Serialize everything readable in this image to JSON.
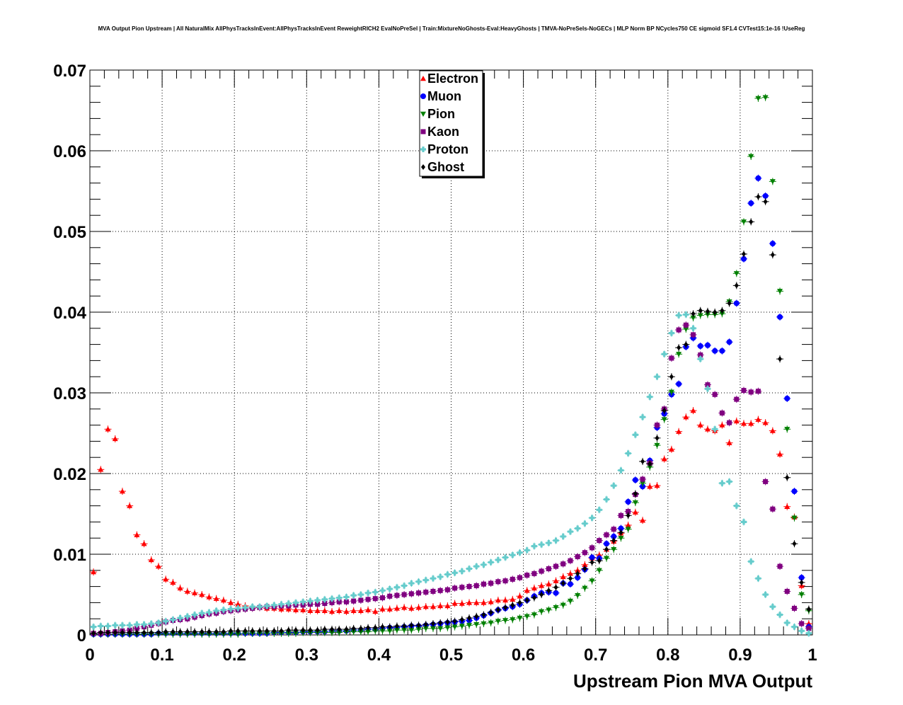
{
  "chart_data": {
    "type": "scatter",
    "title": "MVA Output Pion Upstream | All NaturalMix AllPhysTracksInEvent:AllPhysTracksInEvent ReweightRICH2 EvalNoPreSel | Train:MixtureNoGhosts-Eval:HeavyGhosts | TMVA-NoPreSels-NoGECs | MLP Norm BP NCycles750 CE sigmoid SF1.4 CVTest15:1e-16 !UseReg",
    "xlabel": "Upstream Pion MVA Output",
    "ylabel": "",
    "xlim": [
      0,
      1
    ],
    "ylim": [
      0,
      0.07
    ],
    "x_ticks": [
      "0",
      "0.1",
      "0.2",
      "0.3",
      "0.4",
      "0.5",
      "0.6",
      "0.7",
      "0.8",
      "0.9",
      "1"
    ],
    "y_ticks": [
      "0",
      "0.01",
      "0.02",
      "0.03",
      "0.04",
      "0.05",
      "0.06",
      "0.07"
    ],
    "grid": true,
    "legend_position": "top-center",
    "x": [
      0.005,
      0.015,
      0.025,
      0.035,
      0.045,
      0.055,
      0.065,
      0.075,
      0.085,
      0.095,
      0.105,
      0.115,
      0.125,
      0.135,
      0.145,
      0.155,
      0.165,
      0.175,
      0.185,
      0.195,
      0.205,
      0.215,
      0.225,
      0.235,
      0.245,
      0.255,
      0.265,
      0.275,
      0.285,
      0.295,
      0.305,
      0.315,
      0.325,
      0.335,
      0.345,
      0.355,
      0.365,
      0.375,
      0.385,
      0.395,
      0.405,
      0.415,
      0.425,
      0.435,
      0.445,
      0.455,
      0.465,
      0.475,
      0.485,
      0.495,
      0.505,
      0.515,
      0.525,
      0.535,
      0.545,
      0.555,
      0.565,
      0.575,
      0.585,
      0.595,
      0.605,
      0.615,
      0.625,
      0.635,
      0.645,
      0.655,
      0.665,
      0.675,
      0.685,
      0.695,
      0.705,
      0.715,
      0.725,
      0.735,
      0.745,
      0.755,
      0.765,
      0.775,
      0.785,
      0.795,
      0.805,
      0.815,
      0.825,
      0.835,
      0.845,
      0.855,
      0.865,
      0.875,
      0.885,
      0.895,
      0.905,
      0.915,
      0.925,
      0.935,
      0.945,
      0.955,
      0.965,
      0.975,
      0.985,
      0.995
    ],
    "series": [
      {
        "name": "Electron",
        "color": "#ff0000",
        "marker": "triangle-up",
        "values": [
          0.0078,
          0.0205,
          0.0255,
          0.0243,
          0.0178,
          0.016,
          0.0124,
          0.0113,
          0.0093,
          0.0085,
          0.0069,
          0.0065,
          0.0058,
          0.0054,
          0.0052,
          0.005,
          0.0047,
          0.0045,
          0.0043,
          0.004,
          0.0038,
          0.0036,
          0.0034,
          0.0034,
          0.0033,
          0.0033,
          0.0032,
          0.0032,
          0.0031,
          0.0031,
          0.003,
          0.003,
          0.003,
          0.0029,
          0.003,
          0.0029,
          0.003,
          0.003,
          0.0031,
          0.0029,
          0.0032,
          0.0032,
          0.0033,
          0.0034,
          0.0033,
          0.0034,
          0.0035,
          0.0035,
          0.0036,
          0.0036,
          0.0039,
          0.0039,
          0.004,
          0.004,
          0.004,
          0.0041,
          0.0043,
          0.0043,
          0.0044,
          0.0048,
          0.0055,
          0.0058,
          0.0061,
          0.0063,
          0.0067,
          0.0072,
          0.0076,
          0.008,
          0.0087,
          0.0095,
          0.0099,
          0.0106,
          0.0116,
          0.0126,
          0.0136,
          0.0152,
          0.0142,
          0.0184,
          0.0185,
          0.0218,
          0.023,
          0.0252,
          0.027,
          0.0278,
          0.026,
          0.0255,
          0.0253,
          0.026,
          0.0238,
          0.0265,
          0.0262,
          0.0262,
          0.0267,
          0.0263,
          0.0253,
          0.0224,
          0.0159,
          0.0146,
          0.0061,
          0.0014
        ]
      },
      {
        "name": "Muon",
        "color": "#0000ff",
        "marker": "circle",
        "values": [
          0.0001,
          0.0001,
          0.0001,
          0.0001,
          0.0001,
          0.0001,
          0.0001,
          0.0001,
          0.0001,
          0.0002,
          0.0002,
          0.0002,
          0.0002,
          0.0002,
          0.0002,
          0.0002,
          0.0002,
          0.0002,
          0.0002,
          0.0002,
          0.0002,
          0.0002,
          0.0002,
          0.0002,
          0.0002,
          0.0003,
          0.0003,
          0.0003,
          0.0003,
          0.0004,
          0.0004,
          0.0004,
          0.0004,
          0.0005,
          0.0005,
          0.0005,
          0.0006,
          0.0006,
          0.0007,
          0.0007,
          0.0008,
          0.0009,
          0.0009,
          0.001,
          0.0011,
          0.0011,
          0.0012,
          0.0013,
          0.0014,
          0.0015,
          0.0016,
          0.0017,
          0.0018,
          0.0021,
          0.0024,
          0.0027,
          0.0031,
          0.0033,
          0.0035,
          0.0038,
          0.0043,
          0.0048,
          0.0052,
          0.0053,
          0.0052,
          0.0064,
          0.0063,
          0.0071,
          0.0081,
          0.0096,
          0.0095,
          0.0113,
          0.0122,
          0.0132,
          0.0165,
          0.0192,
          0.0184,
          0.0216,
          0.0257,
          0.0274,
          0.0298,
          0.0311,
          0.0357,
          0.0368,
          0.0358,
          0.0359,
          0.0352,
          0.0352,
          0.0363,
          0.0411,
          0.0466,
          0.0535,
          0.0566,
          0.0544,
          0.0485,
          0.0394,
          0.0293,
          0.0178,
          0.0071,
          0.001
        ]
      },
      {
        "name": "Pion",
        "color": "#008000",
        "marker": "triangle-down",
        "values": [
          0.0001,
          0.0001,
          0.0001,
          0.0001,
          0.0001,
          0.0001,
          0.0001,
          0.0001,
          0.0001,
          0.0001,
          0.0001,
          0.0001,
          0.0001,
          0.0001,
          0.0001,
          0.0001,
          0.0001,
          0.0001,
          0.0001,
          0.0001,
          0.0001,
          0.0002,
          0.0002,
          0.0002,
          0.0002,
          0.0002,
          0.0002,
          0.0002,
          0.0002,
          0.0003,
          0.0003,
          0.0003,
          0.0003,
          0.0003,
          0.0003,
          0.0004,
          0.0004,
          0.0004,
          0.0004,
          0.0005,
          0.0005,
          0.0005,
          0.0006,
          0.0006,
          0.0006,
          0.0007,
          0.0008,
          0.0008,
          0.0008,
          0.0009,
          0.001,
          0.0011,
          0.0012,
          0.0013,
          0.0014,
          0.0015,
          0.0017,
          0.0018,
          0.0019,
          0.0021,
          0.0023,
          0.0025,
          0.0029,
          0.0031,
          0.0034,
          0.0037,
          0.0042,
          0.0049,
          0.0058,
          0.0067,
          0.008,
          0.0095,
          0.0106,
          0.012,
          0.0131,
          0.0164,
          0.0188,
          0.0208,
          0.0235,
          0.0267,
          0.0301,
          0.0348,
          0.0379,
          0.0393,
          0.0396,
          0.0397,
          0.0397,
          0.0398,
          0.0413,
          0.0448,
          0.0512,
          0.0593,
          0.0665,
          0.0666,
          0.0562,
          0.0426,
          0.0255,
          0.0145,
          0.005,
          0.003
        ]
      },
      {
        "name": "Kaon",
        "color": "#800080",
        "marker": "square",
        "values": [
          0.0002,
          0.0002,
          0.0003,
          0.0004,
          0.0005,
          0.0006,
          0.0008,
          0.001,
          0.0012,
          0.0014,
          0.0016,
          0.0018,
          0.0019,
          0.002,
          0.0022,
          0.0024,
          0.0026,
          0.0027,
          0.0029,
          0.003,
          0.0031,
          0.0032,
          0.0033,
          0.0034,
          0.0035,
          0.0035,
          0.0036,
          0.0036,
          0.0037,
          0.0037,
          0.0038,
          0.0038,
          0.0039,
          0.004,
          0.0041,
          0.0041,
          0.0042,
          0.0043,
          0.0044,
          0.0045,
          0.0046,
          0.0048,
          0.0049,
          0.005,
          0.0051,
          0.0052,
          0.0053,
          0.0054,
          0.0055,
          0.0056,
          0.0058,
          0.0059,
          0.006,
          0.0061,
          0.0063,
          0.0064,
          0.0066,
          0.0067,
          0.0069,
          0.0071,
          0.0074,
          0.0076,
          0.0079,
          0.0082,
          0.0085,
          0.0088,
          0.0092,
          0.0097,
          0.0102,
          0.0108,
          0.0117,
          0.0124,
          0.0131,
          0.0148,
          0.0153,
          0.0174,
          0.0193,
          0.0213,
          0.026,
          0.028,
          0.0343,
          0.0378,
          0.0384,
          0.0372,
          0.0347,
          0.031,
          0.0298,
          0.0275,
          0.0263,
          0.0292,
          0.0303,
          0.0301,
          0.0302,
          0.019,
          0.0156,
          0.0085,
          0.0054,
          0.0033,
          0.0014,
          0.0008
        ]
      },
      {
        "name": "Proton",
        "color": "#66cccc",
        "marker": "cross",
        "values": [
          0.001,
          0.0011,
          0.0011,
          0.0012,
          0.0012,
          0.0012,
          0.0013,
          0.0013,
          0.0014,
          0.0015,
          0.0017,
          0.0019,
          0.0021,
          0.0023,
          0.0025,
          0.0027,
          0.0028,
          0.003,
          0.0031,
          0.0032,
          0.0033,
          0.0034,
          0.0035,
          0.0035,
          0.0036,
          0.0037,
          0.0038,
          0.0039,
          0.004,
          0.0041,
          0.0042,
          0.0043,
          0.0044,
          0.0045,
          0.0046,
          0.0047,
          0.0049,
          0.005,
          0.0052,
          0.0053,
          0.0055,
          0.0057,
          0.0059,
          0.0061,
          0.0064,
          0.0066,
          0.0068,
          0.007,
          0.0072,
          0.0075,
          0.0077,
          0.0079,
          0.0082,
          0.0085,
          0.0087,
          0.009,
          0.0093,
          0.0096,
          0.0099,
          0.0102,
          0.0105,
          0.011,
          0.0112,
          0.0114,
          0.0117,
          0.0122,
          0.0128,
          0.0132,
          0.0138,
          0.0145,
          0.0155,
          0.0168,
          0.0185,
          0.0204,
          0.0225,
          0.0248,
          0.027,
          0.0295,
          0.032,
          0.0348,
          0.0374,
          0.0396,
          0.0397,
          0.038,
          0.0342,
          0.0305,
          0.0255,
          0.0188,
          0.019,
          0.016,
          0.014,
          0.0091,
          0.007,
          0.005,
          0.0035,
          0.0025,
          0.0015,
          0.001,
          0.0005,
          0.0002
        ]
      },
      {
        "name": "Ghost",
        "color": "#000000",
        "marker": "diamond",
        "values": [
          0.0002,
          0.0003,
          0.0003,
          0.0003,
          0.0003,
          0.0003,
          0.0003,
          0.0003,
          0.0003,
          0.0003,
          0.0004,
          0.0004,
          0.0004,
          0.0004,
          0.0004,
          0.0004,
          0.0004,
          0.0004,
          0.0004,
          0.0005,
          0.0005,
          0.0005,
          0.0005,
          0.0005,
          0.0005,
          0.0005,
          0.0005,
          0.0006,
          0.0006,
          0.0006,
          0.0006,
          0.0006,
          0.0007,
          0.0007,
          0.0007,
          0.0007,
          0.0008,
          0.0008,
          0.0009,
          0.0009,
          0.001,
          0.001,
          0.0011,
          0.0011,
          0.0012,
          0.0012,
          0.0013,
          0.0014,
          0.0015,
          0.0016,
          0.0017,
          0.0019,
          0.0021,
          0.0023,
          0.0025,
          0.0028,
          0.0031,
          0.0034,
          0.0037,
          0.004,
          0.0043,
          0.0046,
          0.005,
          0.0055,
          0.0059,
          0.0064,
          0.007,
          0.0076,
          0.0082,
          0.009,
          0.0092,
          0.0106,
          0.0117,
          0.0127,
          0.0148,
          0.0175,
          0.0215,
          0.0212,
          0.0244,
          0.0278,
          0.032,
          0.0356,
          0.036,
          0.0398,
          0.0402,
          0.0401,
          0.04,
          0.0402,
          0.0411,
          0.0433,
          0.0472,
          0.0512,
          0.0543,
          0.0537,
          0.0471,
          0.0342,
          0.0195,
          0.0113,
          0.0065,
          0.0032
        ]
      }
    ]
  }
}
